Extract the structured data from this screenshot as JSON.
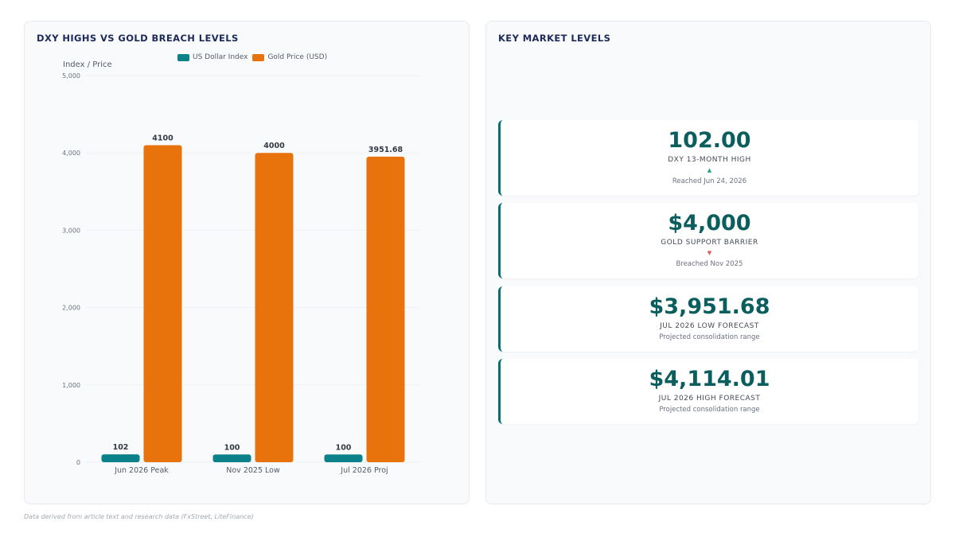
{
  "chart_panel": {
    "title": "DXY HIGHS VS GOLD BREACH LEVELS"
  },
  "chart_data": {
    "type": "bar",
    "title": "DXY HIGHS VS GOLD BREACH LEVELS",
    "ylabel": "Index / Price",
    "xlabel": "",
    "ylim": [
      0,
      5000
    ],
    "yticks": [
      "0",
      "1,000",
      "2,000",
      "3,000",
      "4,000",
      "5,000"
    ],
    "categories": [
      "Jun 2026 Peak",
      "Nov 2025 Low",
      "Jul 2026 Proj"
    ],
    "series": [
      {
        "name": "US Dollar Index",
        "color": "#0b8189",
        "values": [
          102,
          100,
          100
        ],
        "labels": [
          "102",
          "100",
          "100"
        ]
      },
      {
        "name": "Gold Price (USD)",
        "color": "#e8730c",
        "values": [
          4100,
          4000,
          3951.68
        ],
        "labels": [
          "4100",
          "4000",
          "3951.68"
        ]
      }
    ],
    "legend": "top-center",
    "grid": true
  },
  "kpi_panel": {
    "title": "KEY MARKET LEVELS",
    "cards": [
      {
        "value": "102.00",
        "label": "DXY 13-MONTH HIGH",
        "arrow": "▲",
        "arrow_color": "#1fa37a",
        "sub": "Reached Jun 24, 2026"
      },
      {
        "value": "$4,000",
        "label": "GOLD SUPPORT BARRIER",
        "arrow": "▼",
        "arrow_color": "#e0564f",
        "sub": "Breached Nov 2025"
      },
      {
        "value": "$3,951.68",
        "label": "JUL 2026 LOW FORECAST",
        "arrow": "",
        "arrow_color": "",
        "sub": "Projected consolidation range"
      },
      {
        "value": "$4,114.01",
        "label": "JUL 2026 HIGH FORECAST",
        "arrow": "",
        "arrow_color": "",
        "sub": "Projected consolidation range"
      }
    ]
  },
  "footnote": "Data derived from article text and research data (FxStreet, LiteFinance)"
}
